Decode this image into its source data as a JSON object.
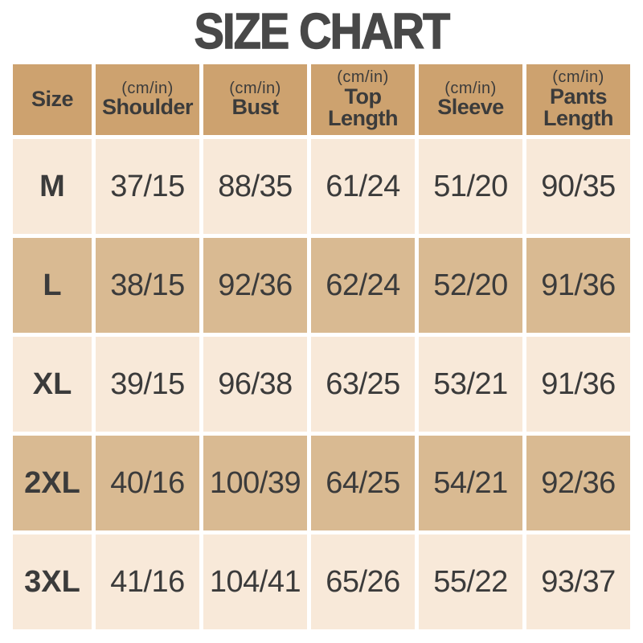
{
  "title": "SIZE CHART",
  "colors": {
    "page_bg": "#ffffff",
    "header_bg": "#cda26f",
    "row_light_bg": "#f8e9d9",
    "row_dark_bg": "#d9ba92",
    "cell_text": "#3b3b3b",
    "title_text": "#484848"
  },
  "table": {
    "headers": [
      {
        "label": "Size",
        "unit": ""
      },
      {
        "label": "Shoulder",
        "unit": "(cm/in)"
      },
      {
        "label": "Bust",
        "unit": "(cm/in)"
      },
      {
        "label": "Top Length",
        "unit": "(cm/in)"
      },
      {
        "label": "Sleeve",
        "unit": "(cm/in)"
      },
      {
        "label": "Pants Length",
        "unit": "(cm/in)"
      }
    ],
    "rows": [
      {
        "size": "M",
        "values": [
          "37/15",
          "88/35",
          "61/24",
          "51/20",
          "90/35"
        ]
      },
      {
        "size": "L",
        "values": [
          "38/15",
          "92/36",
          "62/24",
          "52/20",
          "91/36"
        ]
      },
      {
        "size": "XL",
        "values": [
          "39/15",
          "96/38",
          "63/25",
          "53/21",
          "91/36"
        ]
      },
      {
        "size": "2XL",
        "values": [
          "40/16",
          "100/39",
          "64/25",
          "54/21",
          "92/36"
        ]
      },
      {
        "size": "3XL",
        "values": [
          "41/16",
          "104/41",
          "65/26",
          "55/22",
          "93/37"
        ]
      }
    ]
  },
  "chart_data": {
    "type": "table",
    "title": "SIZE CHART",
    "columns": [
      "Size",
      "Shoulder (cm/in)",
      "Bust (cm/in)",
      "Top Length (cm/in)",
      "Sleeve (cm/in)",
      "Pants Length (cm/in)"
    ],
    "rows": [
      [
        "M",
        "37/15",
        "88/35",
        "61/24",
        "51/20",
        "90/35"
      ],
      [
        "L",
        "38/15",
        "92/36",
        "62/24",
        "52/20",
        "91/36"
      ],
      [
        "XL",
        "39/15",
        "96/38",
        "63/25",
        "53/21",
        "91/36"
      ],
      [
        "2XL",
        "40/16",
        "100/39",
        "64/25",
        "54/21",
        "92/36"
      ],
      [
        "3XL",
        "41/16",
        "104/41",
        "65/26",
        "55/22",
        "93/37"
      ]
    ],
    "layout": {
      "header_background": "#cda26f",
      "row_alternating_backgrounds": [
        "#f8e9d9",
        "#d9ba92"
      ],
      "cell_gap_color": "#ffffff"
    }
  }
}
